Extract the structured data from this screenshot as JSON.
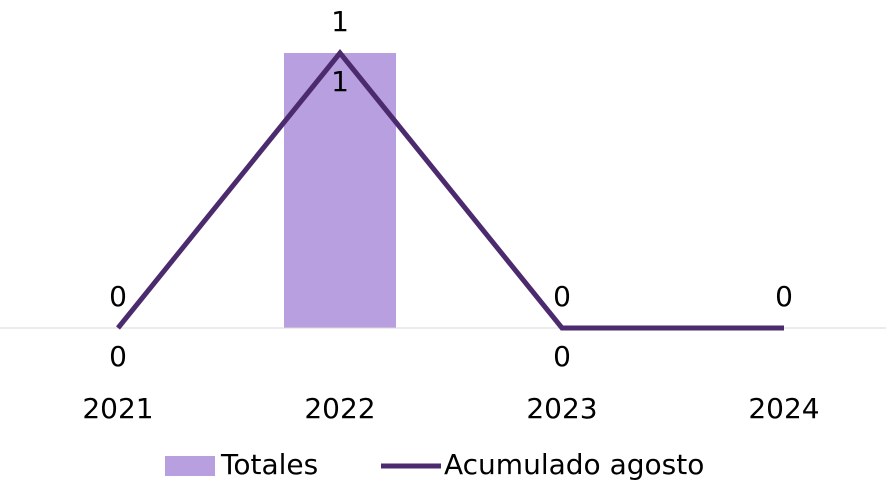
{
  "chart_data": {
    "type": "bar-line",
    "categories": [
      "2021",
      "2022",
      "2023",
      "2024"
    ],
    "series": [
      {
        "name": "Totales",
        "type": "bar",
        "color": "#b89fdf",
        "values": [
          0,
          1,
          0,
          0
        ],
        "value_labels": [
          "0",
          "1",
          "0",
          null
        ]
      },
      {
        "name": "Acumulado agosto",
        "type": "line",
        "color": "#4b2a6e",
        "values": [
          0,
          1,
          0,
          0
        ]
      }
    ],
    "ylim": [
      0,
      1.1
    ],
    "legend": "bottom"
  }
}
